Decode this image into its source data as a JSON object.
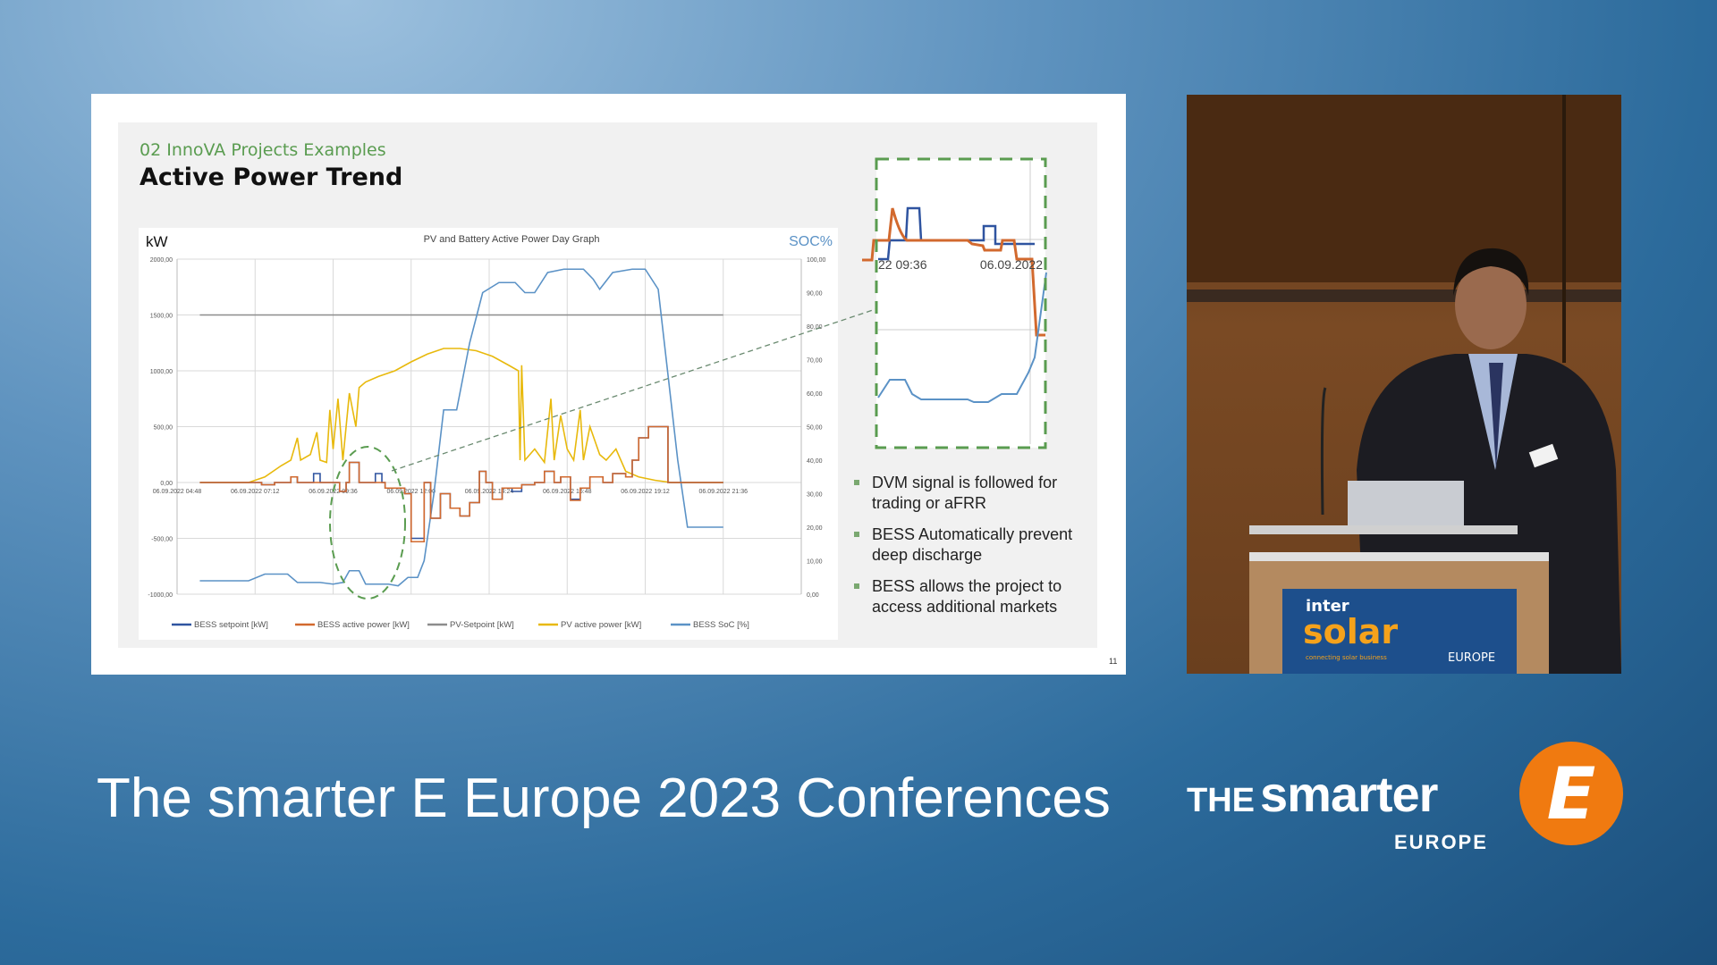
{
  "slide": {
    "subtitle": "02 InnoVA Projects Examples",
    "title": "Active Power Trend",
    "page_number": "11",
    "bullets": [
      "DVM signal is followed for trading or aFRR",
      "BESS Automatically prevent deep discharge",
      "BESS allows the project to access additional markets"
    ],
    "inset": {
      "label_left": "22 09:36",
      "label_right": "06.09.2022",
      "highlight_color": "#5a9c50"
    }
  },
  "chart_data": {
    "type": "line",
    "title": "PV and Battery Active Power Day Graph",
    "ylabel": "kW",
    "y2label": "SOC%",
    "ylim": [
      -1000,
      2000
    ],
    "y2lim": [
      0,
      100
    ],
    "xlim": [
      "04:48",
      "24:00"
    ],
    "grid": true,
    "legend": "bottom",
    "yticks": [
      "2000,00",
      "1500,00",
      "1000,00",
      "500,00",
      "0,00",
      "-500,00",
      "-1000,00"
    ],
    "y2ticks": [
      "100,00",
      "90,00",
      "80,00",
      "70,00",
      "60,00",
      "50,00",
      "40,00",
      "30,00",
      "20,00",
      "10,00",
      "0,00"
    ],
    "xticks": [
      "06.09.2022 04:48",
      "06.09.2022 07:12",
      "06.09.2022 09:36",
      "06.09.2022 12:00",
      "06.09.2022 14:24",
      "06.09.2022 16:48",
      "06.09.2022 19:12",
      "06.09.2022 21:36"
    ],
    "series": [
      {
        "name": "BESS setpoint [kW]",
        "color": "#2f54a0",
        "axis": "left",
        "step": true,
        "points": [
          [
            "05:30",
            0
          ],
          [
            "07:24",
            -20
          ],
          [
            "07:48",
            0
          ],
          [
            "08:18",
            50
          ],
          [
            "08:30",
            0
          ],
          [
            "09:00",
            80
          ],
          [
            "09:12",
            0
          ],
          [
            "09:48",
            -80
          ],
          [
            "10:00",
            0
          ],
          [
            "10:06",
            180
          ],
          [
            "10:24",
            0
          ],
          [
            "10:54",
            80
          ],
          [
            "11:06",
            0
          ],
          [
            "11:12",
            -50
          ],
          [
            "11:48",
            -100
          ],
          [
            "12:00",
            -500
          ],
          [
            "12:24",
            0
          ],
          [
            "12:36",
            -320
          ],
          [
            "12:54",
            -100
          ],
          [
            "13:12",
            -230
          ],
          [
            "13:30",
            -300
          ],
          [
            "13:48",
            -180
          ],
          [
            "14:06",
            100
          ],
          [
            "14:18",
            0
          ],
          [
            "14:30",
            -150
          ],
          [
            "14:48",
            -50
          ],
          [
            "15:06",
            -80
          ],
          [
            "15:24",
            -20
          ],
          [
            "15:48",
            0
          ],
          [
            "16:06",
            100
          ],
          [
            "16:24",
            0
          ],
          [
            "16:36",
            50
          ],
          [
            "16:54",
            -150
          ],
          [
            "17:12",
            -50
          ],
          [
            "17:30",
            50
          ],
          [
            "17:54",
            0
          ],
          [
            "18:12",
            80
          ],
          [
            "18:36",
            50
          ],
          [
            "18:48",
            200
          ],
          [
            "19:00",
            400
          ],
          [
            "19:18",
            500
          ],
          [
            "19:54",
            0
          ],
          [
            "21:36",
            0
          ]
        ]
      },
      {
        "name": "BESS active power [kW]",
        "color": "#d2692e",
        "axis": "left",
        "step": true,
        "points": [
          [
            "05:30",
            0
          ],
          [
            "07:24",
            -20
          ],
          [
            "07:48",
            0
          ],
          [
            "08:18",
            50
          ],
          [
            "08:30",
            0
          ],
          [
            "09:48",
            -80
          ],
          [
            "10:00",
            0
          ],
          [
            "10:06",
            180
          ],
          [
            "10:24",
            0
          ],
          [
            "11:12",
            -50
          ],
          [
            "11:48",
            -100
          ],
          [
            "12:00",
            -530
          ],
          [
            "12:24",
            0
          ],
          [
            "12:36",
            -320
          ],
          [
            "12:54",
            -100
          ],
          [
            "13:12",
            -230
          ],
          [
            "13:30",
            -300
          ],
          [
            "13:48",
            -180
          ],
          [
            "14:06",
            100
          ],
          [
            "14:18",
            0
          ],
          [
            "14:30",
            -150
          ],
          [
            "14:48",
            -50
          ],
          [
            "15:06",
            -50
          ],
          [
            "15:24",
            -20
          ],
          [
            "15:48",
            0
          ],
          [
            "16:06",
            100
          ],
          [
            "16:24",
            0
          ],
          [
            "16:36",
            50
          ],
          [
            "16:54",
            -160
          ],
          [
            "17:12",
            -50
          ],
          [
            "17:30",
            50
          ],
          [
            "17:54",
            0
          ],
          [
            "18:12",
            80
          ],
          [
            "18:36",
            50
          ],
          [
            "18:48",
            200
          ],
          [
            "19:00",
            400
          ],
          [
            "19:18",
            500
          ],
          [
            "19:54",
            0
          ],
          [
            "21:36",
            0
          ]
        ]
      },
      {
        "name": "PV-Setpoint [kW]",
        "color": "#8c8c8c",
        "axis": "left",
        "step": false,
        "points": [
          [
            "05:30",
            1500
          ],
          [
            "21:36",
            1500
          ]
        ]
      },
      {
        "name": "PV active power [kW]",
        "color": "#e8b90c",
        "axis": "left",
        "step": false,
        "points": [
          [
            "05:30",
            0
          ],
          [
            "07:00",
            0
          ],
          [
            "07:30",
            50
          ],
          [
            "08:00",
            150
          ],
          [
            "08:18",
            200
          ],
          [
            "08:30",
            400
          ],
          [
            "08:36",
            200
          ],
          [
            "08:54",
            250
          ],
          [
            "09:06",
            450
          ],
          [
            "09:12",
            200
          ],
          [
            "09:24",
            180
          ],
          [
            "09:30",
            650
          ],
          [
            "09:36",
            300
          ],
          [
            "09:45",
            750
          ],
          [
            "09:54",
            200
          ],
          [
            "10:06",
            800
          ],
          [
            "10:18",
            500
          ],
          [
            "10:24",
            850
          ],
          [
            "10:36",
            900
          ],
          [
            "11:00",
            950
          ],
          [
            "11:30",
            1000
          ],
          [
            "12:00",
            1080
          ],
          [
            "12:30",
            1150
          ],
          [
            "13:00",
            1200
          ],
          [
            "13:30",
            1200
          ],
          [
            "14:00",
            1180
          ],
          [
            "14:30",
            1130
          ],
          [
            "15:00",
            1050
          ],
          [
            "15:18",
            1000
          ],
          [
            "15:21",
            200
          ],
          [
            "15:24",
            1050
          ],
          [
            "15:30",
            200
          ],
          [
            "15:48",
            300
          ],
          [
            "16:06",
            180
          ],
          [
            "16:18",
            750
          ],
          [
            "16:24",
            200
          ],
          [
            "16:36",
            600
          ],
          [
            "16:48",
            300
          ],
          [
            "17:00",
            200
          ],
          [
            "17:12",
            650
          ],
          [
            "17:18",
            200
          ],
          [
            "17:30",
            500
          ],
          [
            "17:48",
            250
          ],
          [
            "18:00",
            200
          ],
          [
            "18:18",
            300
          ],
          [
            "18:36",
            100
          ],
          [
            "19:00",
            50
          ],
          [
            "19:30",
            20
          ],
          [
            "20:00",
            0
          ],
          [
            "21:36",
            0
          ]
        ]
      },
      {
        "name": "BESS SoC [%]",
        "color": "#5b92c6",
        "axis": "right",
        "step": false,
        "points": [
          [
            "05:30",
            4
          ],
          [
            "07:00",
            4
          ],
          [
            "07:30",
            6
          ],
          [
            "08:12",
            6
          ],
          [
            "08:30",
            3.5
          ],
          [
            "09:12",
            3.5
          ],
          [
            "09:36",
            3
          ],
          [
            "09:54",
            3.5
          ],
          [
            "10:06",
            7
          ],
          [
            "10:24",
            7
          ],
          [
            "10:36",
            3
          ],
          [
            "11:18",
            3
          ],
          [
            "11:36",
            2.5
          ],
          [
            "11:54",
            5
          ],
          [
            "12:12",
            5
          ],
          [
            "12:24",
            10
          ],
          [
            "12:42",
            30
          ],
          [
            "13:00",
            55
          ],
          [
            "13:24",
            55
          ],
          [
            "13:48",
            75
          ],
          [
            "14:12",
            90
          ],
          [
            "14:42",
            93
          ],
          [
            "15:12",
            93
          ],
          [
            "15:30",
            90
          ],
          [
            "15:48",
            90
          ],
          [
            "16:12",
            96
          ],
          [
            "16:42",
            97
          ],
          [
            "17:18",
            97
          ],
          [
            "17:36",
            94
          ],
          [
            "17:48",
            91
          ],
          [
            "18:12",
            96
          ],
          [
            "18:48",
            97
          ],
          [
            "19:12",
            97
          ],
          [
            "19:36",
            91
          ],
          [
            "20:12",
            40
          ],
          [
            "20:30",
            20
          ],
          [
            "21:36",
            20
          ]
        ]
      }
    ]
  },
  "video": {
    "podium_brand_top": "inter",
    "podium_brand_main": "solar",
    "podium_tagline": "connecting solar business",
    "podium_region": "EUROPE"
  },
  "footer": {
    "conference_title": "The smarter E Europe 2023 Conferences",
    "logo_the": "THE",
    "logo_smarter": "smarter",
    "logo_europe": "EUROPE",
    "logo_e": "E"
  }
}
